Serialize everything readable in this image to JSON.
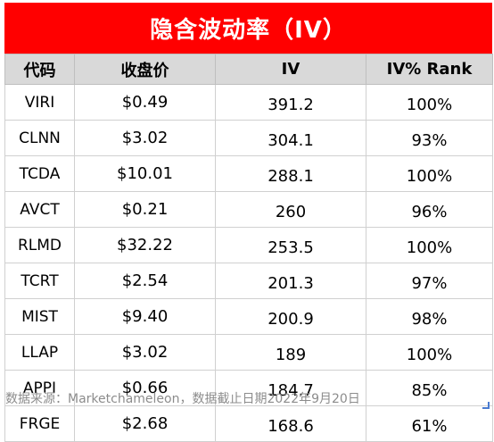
{
  "title": "隐含波动率（IV）",
  "table": {
    "headers": [
      "代码",
      "收盘价",
      "IV",
      "IV% Rank"
    ],
    "rows": [
      [
        "VIRI",
        "$0.49",
        "391.2",
        "100%"
      ],
      [
        "CLNN",
        "$3.02",
        "304.1",
        "93%"
      ],
      [
        "TCDA",
        "$10.01",
        "288.1",
        "100%"
      ],
      [
        "AVCT",
        "$0.21",
        "260",
        "96%"
      ],
      [
        "RLMD",
        "$32.22",
        "253.5",
        "100%"
      ],
      [
        "TCRT",
        "$2.54",
        "201.3",
        "97%"
      ],
      [
        "MIST",
        "$9.40",
        "200.9",
        "98%"
      ],
      [
        "LLAP",
        "$3.02",
        "189",
        "100%"
      ],
      [
        "APPI",
        "$0.66",
        "184.7",
        "85%"
      ],
      [
        "FRGE",
        "$2.68",
        "168.6",
        "61%"
      ]
    ]
  },
  "source_note": "数据来源：Marketchameleon，数据截止日期2022年9月20日",
  "colors": {
    "title_bg": "#ff0000",
    "header_bg": "#d9d9d9"
  }
}
